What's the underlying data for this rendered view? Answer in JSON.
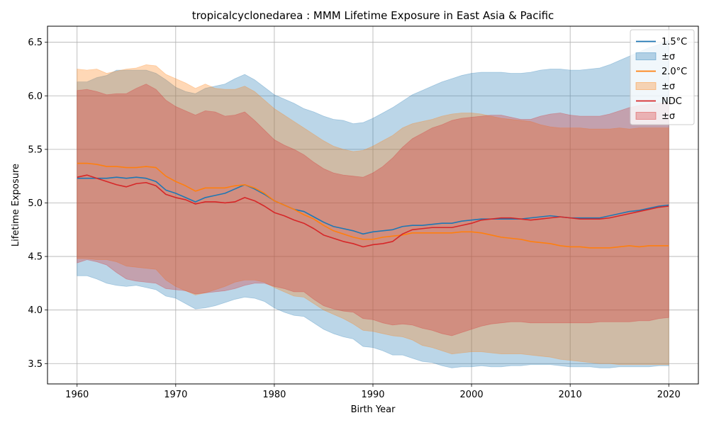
{
  "chart_data": {
    "type": "line",
    "title": "tropicalcyclonedarea : MMM Lifetime Exposure in East Asia & Pacific",
    "xlabel": "Birth Year",
    "ylabel": "Lifetime Exposure",
    "xlim": [
      1957,
      2023
    ],
    "ylim": [
      3.31,
      6.65
    ],
    "xticks": [
      1960,
      1970,
      1980,
      1990,
      2000,
      2010,
      2020
    ],
    "xtick_labels": [
      "1960",
      "1970",
      "1980",
      "1990",
      "2000",
      "2010",
      "2020"
    ],
    "yticks": [
      3.5,
      4.0,
      4.5,
      5.0,
      5.5,
      6.0,
      6.5
    ],
    "ytick_labels": [
      "3.5",
      "4.0",
      "4.5",
      "5.0",
      "5.5",
      "6.0",
      "6.5"
    ],
    "grid": true,
    "legend_position": "top-right",
    "legend": [
      {
        "label": "1.5°C",
        "kind": "line",
        "color": "#1f77b4"
      },
      {
        "label": "±σ",
        "kind": "band",
        "color": "#1f77b4"
      },
      {
        "label": "2.0°C",
        "kind": "line",
        "color": "#ff7f0e"
      },
      {
        "label": "±σ",
        "kind": "band",
        "color": "#ff7f0e"
      },
      {
        "label": "NDC",
        "kind": "line",
        "color": "#d62728"
      },
      {
        "label": "±σ",
        "kind": "band",
        "color": "#d62728"
      }
    ],
    "x": [
      1960,
      1961,
      1962,
      1963,
      1964,
      1965,
      1966,
      1967,
      1968,
      1969,
      1970,
      1971,
      1972,
      1973,
      1974,
      1975,
      1976,
      1977,
      1978,
      1979,
      1980,
      1981,
      1982,
      1983,
      1984,
      1985,
      1986,
      1987,
      1988,
      1989,
      1990,
      1991,
      1992,
      1993,
      1994,
      1995,
      1996,
      1997,
      1998,
      1999,
      2000,
      2001,
      2002,
      2003,
      2004,
      2005,
      2006,
      2007,
      2008,
      2009,
      2010,
      2011,
      2012,
      2013,
      2014,
      2015,
      2016,
      2017,
      2018,
      2019,
      2020
    ],
    "series": [
      {
        "name": "1.5°C",
        "color": "#1f77b4",
        "band_color": "#1f77b4",
        "values": [
          5.23,
          5.23,
          5.23,
          5.23,
          5.24,
          5.23,
          5.24,
          5.23,
          5.2,
          5.12,
          5.09,
          5.05,
          5.01,
          5.05,
          5.07,
          5.09,
          5.13,
          5.17,
          5.13,
          5.08,
          5.02,
          4.98,
          4.94,
          4.92,
          4.87,
          4.82,
          4.78,
          4.76,
          4.74,
          4.71,
          4.73,
          4.74,
          4.75,
          4.78,
          4.79,
          4.79,
          4.8,
          4.81,
          4.81,
          4.83,
          4.84,
          4.85,
          4.85,
          4.85,
          4.85,
          4.85,
          4.86,
          4.87,
          4.88,
          4.87,
          4.86,
          4.86,
          4.86,
          4.86,
          4.88,
          4.9,
          4.92,
          4.93,
          4.95,
          4.97,
          4.98
        ],
        "upper": [
          6.13,
          6.13,
          6.17,
          6.19,
          6.24,
          6.24,
          6.24,
          6.24,
          6.21,
          6.15,
          6.08,
          6.04,
          6.02,
          6.07,
          6.09,
          6.11,
          6.16,
          6.2,
          6.15,
          6.08,
          6.01,
          5.97,
          5.93,
          5.88,
          5.85,
          5.81,
          5.78,
          5.77,
          5.74,
          5.75,
          5.79,
          5.84,
          5.89,
          5.95,
          6.01,
          6.05,
          6.09,
          6.13,
          6.16,
          6.19,
          6.21,
          6.22,
          6.22,
          6.22,
          6.21,
          6.21,
          6.22,
          6.24,
          6.25,
          6.25,
          6.24,
          6.24,
          6.25,
          6.26,
          6.29,
          6.33,
          6.37,
          6.41,
          6.45,
          6.48,
          6.52
        ],
        "lower": [
          4.32,
          4.32,
          4.29,
          4.25,
          4.23,
          4.22,
          4.23,
          4.21,
          4.19,
          4.13,
          4.11,
          4.06,
          4.01,
          4.02,
          4.04,
          4.07,
          4.1,
          4.12,
          4.11,
          4.08,
          4.02,
          3.98,
          3.95,
          3.94,
          3.88,
          3.82,
          3.78,
          3.75,
          3.73,
          3.66,
          3.65,
          3.62,
          3.58,
          3.58,
          3.55,
          3.52,
          3.51,
          3.48,
          3.46,
          3.47,
          3.47,
          3.48,
          3.47,
          3.47,
          3.48,
          3.48,
          3.49,
          3.49,
          3.49,
          3.48,
          3.47,
          3.47,
          3.47,
          3.46,
          3.46,
          3.47,
          3.47,
          3.47,
          3.47,
          3.48,
          3.48
        ]
      },
      {
        "name": "2.0°C",
        "color": "#ff7f0e",
        "band_color": "#ff7f0e",
        "values": [
          5.37,
          5.37,
          5.36,
          5.34,
          5.34,
          5.33,
          5.33,
          5.34,
          5.33,
          5.25,
          5.2,
          5.16,
          5.11,
          5.14,
          5.14,
          5.14,
          5.16,
          5.17,
          5.14,
          5.09,
          5.02,
          4.98,
          4.94,
          4.89,
          4.85,
          4.79,
          4.74,
          4.71,
          4.68,
          4.66,
          4.66,
          4.68,
          4.69,
          4.7,
          4.72,
          4.72,
          4.72,
          4.72,
          4.72,
          4.73,
          4.73,
          4.72,
          4.7,
          4.68,
          4.67,
          4.66,
          4.64,
          4.63,
          4.62,
          4.6,
          4.59,
          4.59,
          4.58,
          4.58,
          4.58,
          4.59,
          4.6,
          4.59,
          4.6,
          4.6,
          4.6
        ],
        "upper": [
          6.25,
          6.24,
          6.25,
          6.21,
          6.23,
          6.25,
          6.26,
          6.29,
          6.28,
          6.2,
          6.16,
          6.12,
          6.07,
          6.11,
          6.07,
          6.06,
          6.06,
          6.09,
          6.04,
          5.96,
          5.88,
          5.82,
          5.76,
          5.7,
          5.64,
          5.58,
          5.53,
          5.5,
          5.48,
          5.49,
          5.53,
          5.58,
          5.63,
          5.7,
          5.74,
          5.76,
          5.78,
          5.81,
          5.83,
          5.84,
          5.84,
          5.83,
          5.81,
          5.79,
          5.78,
          5.77,
          5.76,
          5.73,
          5.71,
          5.7,
          5.7,
          5.7,
          5.69,
          5.69,
          5.69,
          5.7,
          5.69,
          5.7,
          5.7,
          5.7,
          5.7
        ],
        "lower": [
          4.48,
          4.48,
          4.47,
          4.47,
          4.45,
          4.41,
          4.4,
          4.39,
          4.38,
          4.28,
          4.22,
          4.18,
          4.14,
          4.16,
          4.19,
          4.22,
          4.26,
          4.28,
          4.28,
          4.26,
          4.21,
          4.17,
          4.13,
          4.12,
          4.06,
          4.0,
          3.96,
          3.92,
          3.87,
          3.81,
          3.8,
          3.78,
          3.76,
          3.75,
          3.72,
          3.67,
          3.65,
          3.62,
          3.59,
          3.6,
          3.61,
          3.61,
          3.6,
          3.59,
          3.59,
          3.59,
          3.58,
          3.57,
          3.56,
          3.54,
          3.53,
          3.52,
          3.51,
          3.5,
          3.5,
          3.49,
          3.49,
          3.49,
          3.49,
          3.49,
          3.49
        ]
      },
      {
        "name": "NDC",
        "color": "#d62728",
        "band_color": "#d62728",
        "values": [
          5.24,
          5.26,
          5.23,
          5.2,
          5.17,
          5.15,
          5.18,
          5.19,
          5.16,
          5.08,
          5.05,
          5.03,
          4.99,
          5.01,
          5.01,
          5.0,
          5.01,
          5.05,
          5.02,
          4.97,
          4.91,
          4.88,
          4.84,
          4.81,
          4.76,
          4.7,
          4.67,
          4.64,
          4.62,
          4.59,
          4.61,
          4.62,
          4.64,
          4.71,
          4.75,
          4.76,
          4.77,
          4.77,
          4.77,
          4.79,
          4.81,
          4.84,
          4.85,
          4.86,
          4.86,
          4.85,
          4.84,
          4.85,
          4.86,
          4.87,
          4.86,
          4.85,
          4.85,
          4.85,
          4.86,
          4.88,
          4.9,
          4.92,
          4.94,
          4.96,
          4.97
        ],
        "upper": [
          6.05,
          6.06,
          6.04,
          6.01,
          6.02,
          6.02,
          6.07,
          6.11,
          6.06,
          5.96,
          5.9,
          5.86,
          5.82,
          5.86,
          5.85,
          5.81,
          5.82,
          5.85,
          5.77,
          5.68,
          5.59,
          5.54,
          5.5,
          5.45,
          5.38,
          5.32,
          5.28,
          5.26,
          5.25,
          5.24,
          5.28,
          5.34,
          5.42,
          5.52,
          5.6,
          5.65,
          5.7,
          5.73,
          5.77,
          5.79,
          5.8,
          5.81,
          5.82,
          5.82,
          5.8,
          5.78,
          5.78,
          5.81,
          5.83,
          5.84,
          5.82,
          5.81,
          5.81,
          5.81,
          5.83,
          5.86,
          5.89,
          5.91,
          5.92,
          5.93,
          5.94
        ],
        "lower": [
          4.44,
          4.47,
          4.45,
          4.42,
          4.35,
          4.29,
          4.27,
          4.26,
          4.25,
          4.2,
          4.19,
          4.18,
          4.15,
          4.16,
          4.17,
          4.18,
          4.2,
          4.23,
          4.25,
          4.25,
          4.22,
          4.2,
          4.17,
          4.17,
          4.1,
          4.04,
          4.01,
          3.99,
          3.98,
          3.92,
          3.91,
          3.88,
          3.86,
          3.87,
          3.86,
          3.83,
          3.81,
          3.78,
          3.76,
          3.79,
          3.82,
          3.85,
          3.87,
          3.88,
          3.89,
          3.89,
          3.88,
          3.88,
          3.88,
          3.88,
          3.88,
          3.88,
          3.88,
          3.89,
          3.89,
          3.89,
          3.89,
          3.9,
          3.9,
          3.92,
          3.93
        ]
      }
    ]
  }
}
